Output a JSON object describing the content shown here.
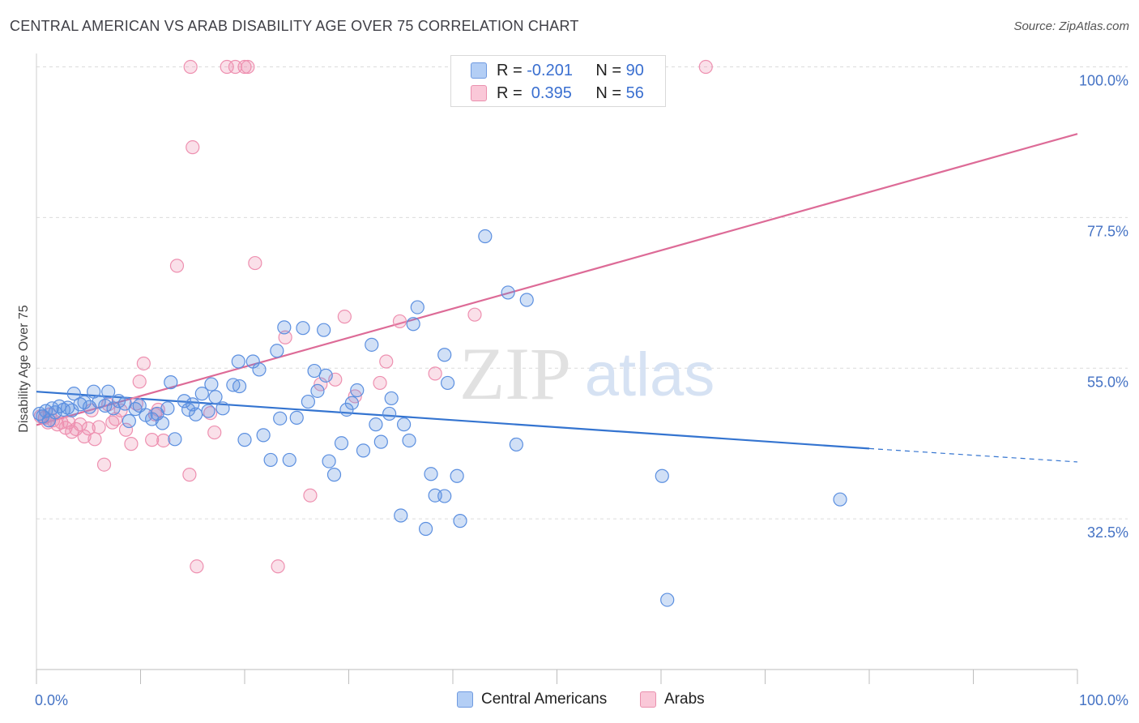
{
  "title": "CENTRAL AMERICAN VS ARAB DISABILITY AGE OVER 75 CORRELATION CHART",
  "source": "Source: ZipAtlas.com",
  "watermark": {
    "zip": "ZIP",
    "atlas": "atlas"
  },
  "legend": {
    "rows": [
      {
        "r_label": "R =",
        "r_value": "-0.201",
        "n_label": "N =",
        "n_value": "90"
      },
      {
        "r_label": "R =",
        "r_value": " 0.395",
        "n_label": "N =",
        "n_value": "56"
      }
    ]
  },
  "bottom_legend": [
    "Central Americans",
    "Arabs"
  ],
  "colors": {
    "blue": "#5b8fe0",
    "blue_line": "#3474d0",
    "pink": "#ee90b0",
    "pink_line": "#dd6b97",
    "tick": "#4472c4"
  },
  "chart_data": {
    "type": "scatter",
    "ylabel": "Disability Age Over 75",
    "xlim": [
      0,
      100
    ],
    "ylim": [
      10,
      102
    ],
    "x_tick_labels": [
      "0.0%",
      "100.0%"
    ],
    "y_ticks": [
      {
        "value": 32.5,
        "label": "32.5%"
      },
      {
        "value": 55.0,
        "label": "55.0%"
      },
      {
        "value": 77.5,
        "label": "77.5%"
      },
      {
        "value": 100.0,
        "label": "100.0%"
      }
    ],
    "series": [
      {
        "name": "Central Americans",
        "r": -0.201,
        "n": 90,
        "trend": {
          "x0": 0,
          "y0": 51.5,
          "x1": 80,
          "y1": 43.0,
          "dash_to_x": 100,
          "dash_to_y": 41.0
        },
        "points": [
          [
            0.3,
            48.2
          ],
          [
            0.6,
            47.8
          ],
          [
            0.9,
            48.6
          ],
          [
            1.2,
            47.2
          ],
          [
            1.5,
            49.0
          ],
          [
            1.8,
            48.4
          ],
          [
            2.2,
            49.3
          ],
          [
            2.6,
            48.8
          ],
          [
            3.0,
            49.1
          ],
          [
            3.4,
            48.7
          ],
          [
            3.6,
            51.2
          ],
          [
            4.2,
            49.6
          ],
          [
            4.6,
            49.9
          ],
          [
            5.1,
            49.2
          ],
          [
            5.5,
            51.5
          ],
          [
            6.0,
            50.0
          ],
          [
            6.6,
            49.4
          ],
          [
            6.9,
            51.5
          ],
          [
            7.4,
            49.0
          ],
          [
            7.9,
            50.1
          ],
          [
            8.5,
            49.7
          ],
          [
            8.9,
            47.1
          ],
          [
            9.5,
            48.9
          ],
          [
            9.9,
            49.4
          ],
          [
            10.5,
            48.0
          ],
          [
            11.1,
            47.4
          ],
          [
            11.6,
            48.2
          ],
          [
            12.1,
            46.8
          ],
          [
            12.6,
            49.0
          ],
          [
            12.9,
            52.9
          ],
          [
            13.3,
            44.4
          ],
          [
            14.2,
            50.1
          ],
          [
            14.6,
            48.8
          ],
          [
            15.0,
            49.6
          ],
          [
            15.3,
            48.1
          ],
          [
            15.9,
            51.2
          ],
          [
            16.5,
            48.6
          ],
          [
            16.8,
            52.6
          ],
          [
            17.2,
            50.7
          ],
          [
            17.9,
            49.0
          ],
          [
            18.9,
            52.5
          ],
          [
            19.5,
            52.3
          ],
          [
            19.4,
            56.0
          ],
          [
            20.0,
            44.3
          ],
          [
            20.8,
            56.0
          ],
          [
            21.4,
            54.8
          ],
          [
            21.8,
            45.0
          ],
          [
            22.5,
            41.3
          ],
          [
            23.1,
            57.6
          ],
          [
            23.4,
            47.5
          ],
          [
            23.8,
            61.1
          ],
          [
            24.3,
            41.3
          ],
          [
            25.0,
            47.6
          ],
          [
            25.6,
            61.0
          ],
          [
            26.1,
            50.0
          ],
          [
            26.7,
            54.6
          ],
          [
            27.0,
            51.6
          ],
          [
            27.6,
            60.7
          ],
          [
            27.8,
            53.9
          ],
          [
            28.1,
            41.1
          ],
          [
            28.6,
            39.1
          ],
          [
            29.3,
            43.8
          ],
          [
            29.8,
            48.8
          ],
          [
            30.3,
            49.8
          ],
          [
            30.8,
            51.7
          ],
          [
            31.4,
            42.7
          ],
          [
            32.2,
            58.5
          ],
          [
            32.6,
            46.6
          ],
          [
            33.1,
            44.0
          ],
          [
            33.9,
            48.2
          ],
          [
            34.1,
            50.5
          ],
          [
            35.0,
            33.0
          ],
          [
            35.3,
            46.6
          ],
          [
            35.8,
            44.2
          ],
          [
            36.2,
            61.6
          ],
          [
            36.6,
            64.1
          ],
          [
            37.4,
            31.0
          ],
          [
            37.9,
            39.2
          ],
          [
            38.3,
            36.0
          ],
          [
            39.2,
            35.9
          ],
          [
            39.2,
            57.0
          ],
          [
            39.5,
            52.8
          ],
          [
            40.4,
            38.9
          ],
          [
            40.7,
            32.2
          ],
          [
            43.1,
            74.7
          ],
          [
            45.3,
            66.3
          ],
          [
            46.1,
            43.6
          ],
          [
            47.1,
            65.2
          ],
          [
            60.1,
            38.9
          ],
          [
            60.6,
            20.4
          ],
          [
            77.2,
            35.4
          ]
        ]
      },
      {
        "name": "Arabs",
        "r": 0.395,
        "n": 56,
        "trend": {
          "x0": 0,
          "y0": 46.5,
          "x1": 100,
          "y1": 90.0
        },
        "points": [
          [
            0.4,
            47.8
          ],
          [
            0.8,
            47.6
          ],
          [
            1.1,
            46.9
          ],
          [
            1.3,
            48.1
          ],
          [
            1.6,
            47.2
          ],
          [
            2.0,
            46.6
          ],
          [
            2.4,
            46.9
          ],
          [
            2.8,
            46.1
          ],
          [
            3.1,
            46.9
          ],
          [
            3.4,
            45.5
          ],
          [
            3.8,
            45.9
          ],
          [
            4.2,
            46.6
          ],
          [
            4.6,
            44.8
          ],
          [
            5.0,
            46.0
          ],
          [
            5.3,
            48.7
          ],
          [
            5.6,
            44.4
          ],
          [
            6.0,
            46.2
          ],
          [
            6.5,
            40.6
          ],
          [
            6.9,
            49.6
          ],
          [
            7.3,
            46.9
          ],
          [
            7.6,
            47.4
          ],
          [
            8.1,
            48.7
          ],
          [
            8.6,
            45.8
          ],
          [
            9.1,
            43.7
          ],
          [
            9.6,
            49.7
          ],
          [
            9.9,
            53.0
          ],
          [
            10.3,
            55.7
          ],
          [
            11.1,
            44.3
          ],
          [
            11.4,
            48.1
          ],
          [
            11.7,
            48.8
          ],
          [
            12.2,
            44.2
          ],
          [
            13.5,
            70.3
          ],
          [
            14.7,
            39.1
          ],
          [
            15.0,
            88.0
          ],
          [
            15.4,
            25.4
          ],
          [
            16.7,
            48.3
          ],
          [
            17.1,
            45.4
          ],
          [
            18.3,
            100.0
          ],
          [
            19.1,
            100.0
          ],
          [
            20.0,
            100.0
          ],
          [
            20.3,
            100.0
          ],
          [
            21.0,
            70.7
          ],
          [
            23.2,
            25.4
          ],
          [
            23.9,
            59.6
          ],
          [
            26.3,
            36.0
          ],
          [
            27.3,
            52.6
          ],
          [
            28.7,
            53.3
          ],
          [
            29.6,
            62.7
          ],
          [
            30.6,
            50.8
          ],
          [
            33.0,
            52.8
          ],
          [
            33.6,
            56.0
          ],
          [
            34.9,
            62.0
          ],
          [
            38.3,
            54.2
          ],
          [
            42.1,
            63.0
          ],
          [
            64.3,
            100.0
          ],
          [
            14.8,
            100.0
          ]
        ]
      }
    ]
  }
}
